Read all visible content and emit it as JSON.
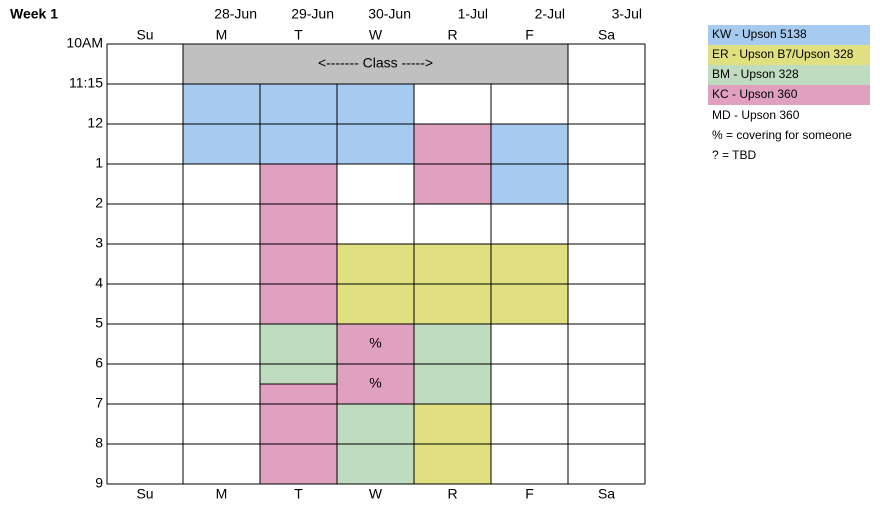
{
  "title": "Week 1",
  "dates": [
    "28-Jun",
    "29-Jun",
    "30-Jun",
    "1-Jul",
    "2-Jul",
    "3-Jul"
  ],
  "days": [
    "Su",
    "M",
    "T",
    "W",
    "R",
    "F",
    "Sa"
  ],
  "times": [
    "10AM",
    "11:15",
    "12",
    "1",
    "2",
    "3",
    "4",
    "5",
    "6",
    "7",
    "8",
    "9"
  ],
  "class_label": "<------- Class ----->",
  "cell_notes": [
    "%",
    "%"
  ],
  "legend": [
    {
      "label": "KW - Upson 5138",
      "color": "#a6caf0"
    },
    {
      "label": "ER - Upson B7/Upson 328",
      "color": "#e0e080"
    },
    {
      "label": "BM - Upson 328",
      "color": "#c0dcc0"
    },
    {
      "label": "KC - Upson 360",
      "color": "#e0a0c0"
    }
  ],
  "notes": [
    "MD - Upson 360",
    "% = covering for someone",
    "? = TBD"
  ]
}
